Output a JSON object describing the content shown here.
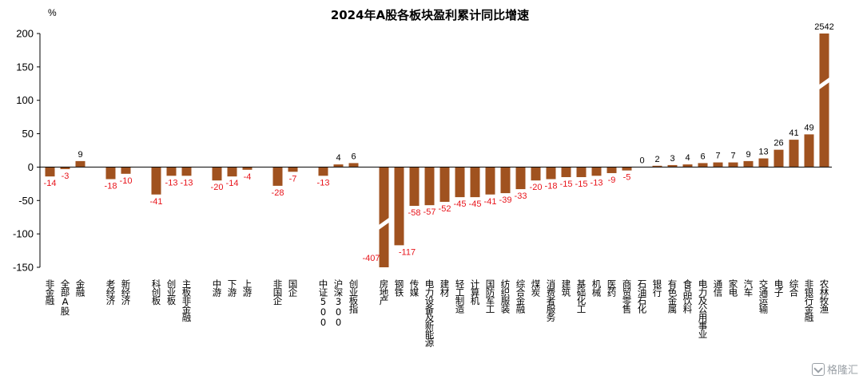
{
  "chart_data": {
    "type": "bar",
    "title": "2024年A股各板块盈利累计同比增速",
    "unit": "%",
    "ylim": [
      -150,
      200
    ],
    "yticks": [
      -150,
      -100,
      -50,
      0,
      50,
      100,
      150,
      200
    ],
    "grid": false,
    "legend": "none",
    "bar_color": "#a0521f",
    "positive_label_color": "#000000",
    "negative_label_color": "#e8141b",
    "axis_break": true,
    "categories": [
      "非金融",
      "全部A股",
      "金融",
      "",
      "老经济",
      "新经济",
      "",
      "科创板",
      "创业板",
      "主板非金融",
      "",
      "中游",
      "下游",
      "上游",
      "",
      "非国企",
      "国企",
      "",
      "中证500",
      "沪深300",
      "创业板指",
      "",
      "房地产",
      "钢铁",
      "传媒",
      "电力设备及新能源",
      "建材",
      "轻工制造",
      "计算机",
      "国防军工",
      "纺织服装",
      "综合金融",
      "煤炭",
      "消费者服务",
      "建筑",
      "基础化工",
      "机械",
      "医药",
      "商贸零售",
      "石油石化",
      "银行",
      "有色金属",
      "食品饮料",
      "电力及公用事业",
      "通信",
      "家电",
      "汽车",
      "交通运输",
      "电子",
      "综合",
      "非银行金融",
      "农林牧渔"
    ],
    "values": [
      -14,
      -3,
      9,
      null,
      -18,
      -10,
      null,
      -41,
      -13,
      -13,
      null,
      -20,
      -14,
      -4,
      null,
      -28,
      -7,
      null,
      -13,
      4,
      6,
      null,
      -407,
      -117,
      -58,
      -57,
      -52,
      -45,
      -45,
      -41,
      -39,
      -33,
      -20,
      -18,
      -15,
      -15,
      -13,
      -9,
      -5,
      0,
      2,
      3,
      4,
      6,
      7,
      7,
      9,
      13,
      26,
      41,
      49,
      2542
    ],
    "data_labels": [
      "-14",
      "-3",
      "9",
      "",
      "-18",
      "-10",
      "",
      "-41",
      "-13",
      "-13",
      "",
      "-20",
      "-14",
      "-4",
      "",
      "-28",
      "-7",
      "",
      "-13",
      "4",
      "6",
      "",
      "-407",
      "-117",
      "-58",
      "-57",
      "-52",
      "-45",
      "-45",
      "-41",
      "-39",
      "-33",
      "-20",
      "-18",
      "-15",
      "-15",
      "-13",
      "-9",
      "-5",
      "0",
      "2",
      "3",
      "4",
      "6",
      "7",
      "7",
      "9",
      "13",
      "26",
      "41",
      "49",
      "2542"
    ]
  },
  "watermark": {
    "text": "格隆汇",
    "icon": "gelonghui-logo-icon"
  }
}
